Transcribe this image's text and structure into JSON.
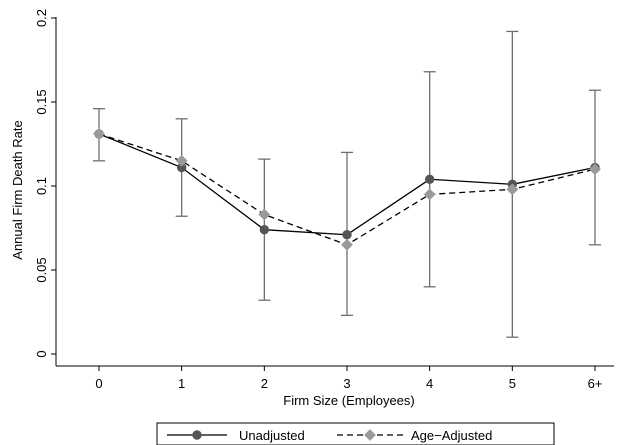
{
  "chart_data": {
    "type": "line",
    "xlabel": "Firm Size (Employees)",
    "ylabel": "Annual Firm Death Rate",
    "categories": [
      "0",
      "1",
      "2",
      "3",
      "4",
      "5",
      "6+"
    ],
    "ylim": [
      0,
      0.2
    ],
    "yticks": [
      {
        "value": 0,
        "label": "0"
      },
      {
        "value": 0.05,
        "label": "0.05"
      },
      {
        "value": 0.1,
        "label": "0.1"
      },
      {
        "value": 0.15,
        "label": "0.15"
      },
      {
        "value": 0.2,
        "label": "0.2"
      }
    ],
    "grid": false,
    "legend_position": "bottom",
    "series": [
      {
        "name": "Unadjusted",
        "values": [
          0.131,
          0.111,
          0.074,
          0.071,
          0.104,
          0.101,
          0.111
        ],
        "color": "#555555",
        "line": "solid",
        "marker": "circle"
      },
      {
        "name": "Age−Adjusted",
        "values": [
          0.131,
          0.115,
          0.083,
          0.065,
          0.095,
          0.098,
          0.11
        ],
        "color": "#9a9a9a",
        "line": "dashed",
        "marker": "diamond"
      }
    ],
    "error_bars": {
      "low": [
        0.115,
        0.082,
        0.032,
        0.023,
        0.04,
        0.01,
        0.065
      ],
      "high": [
        0.146,
        0.14,
        0.116,
        0.12,
        0.168,
        0.192,
        0.157
      ]
    }
  }
}
